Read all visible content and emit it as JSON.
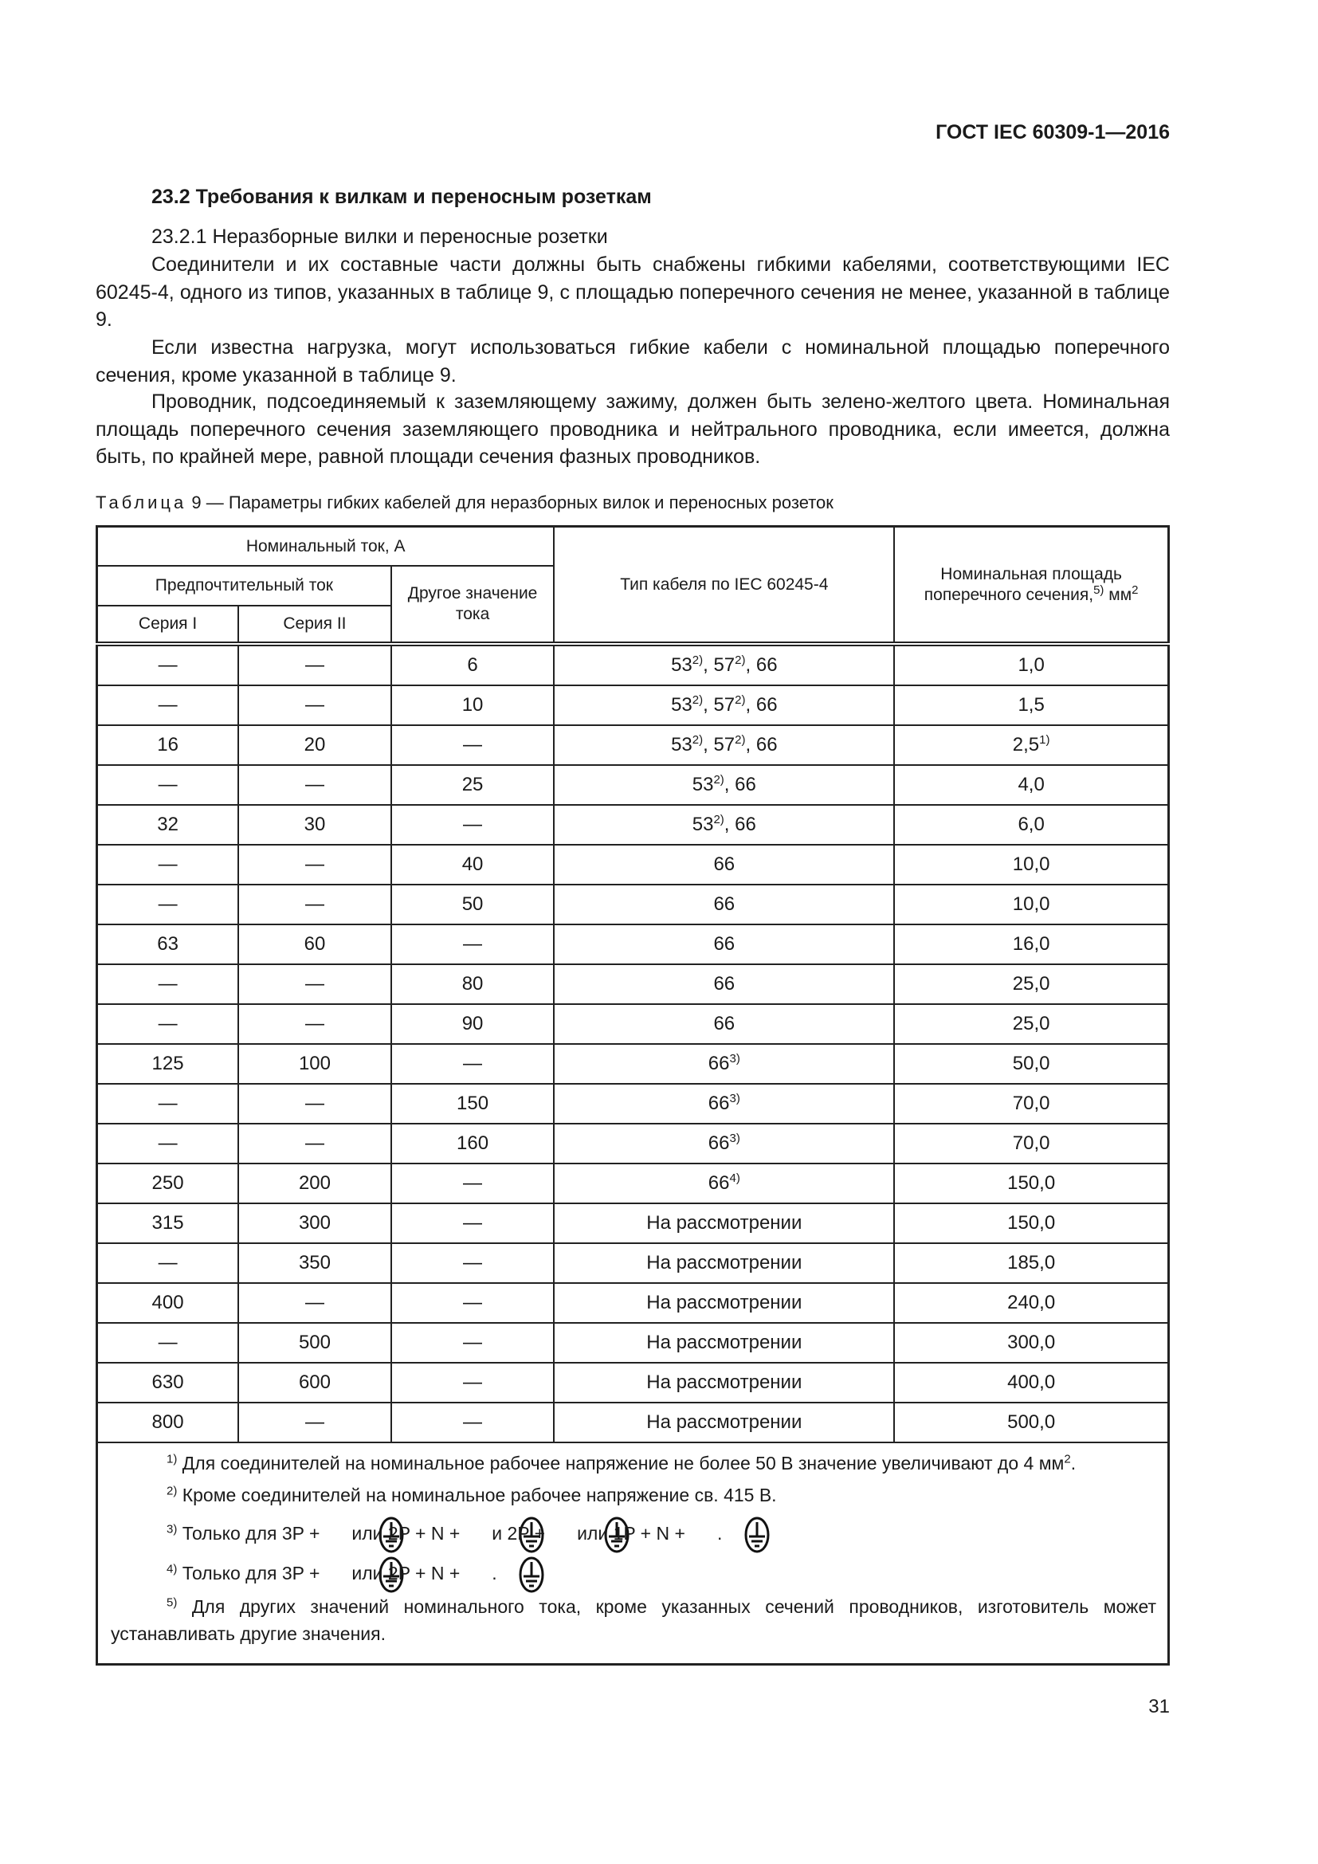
{
  "header": {
    "doc_id": "ГОСТ IEC 60309-1—2016"
  },
  "section": {
    "title": "23.2 Требования к вилкам и переносным розеткам",
    "paragraphs": [
      "23.2.1 Неразборные вилки и переносные розетки",
      "Соединители и их составные части должны быть снабжены гибкими кабелями, соответствующими IEC 60245-4, одного из типов, указанных в таблице 9, с площадью поперечного сечения не менее, указанной в таблице 9.",
      "Если известна нагрузка, могут использоваться гибкие кабели с номинальной площадью поперечного сечения, кроме указанной в таблице 9.",
      "Проводник, подсоединяемый к заземляющему зажиму, должен быть зелено-желтого цвета. Номинальная площадь поперечного сечения заземляющего проводника и нейтрального проводника, если имеется, должна быть, по крайней мере, равной площади сечения фазных проводников."
    ]
  },
  "table": {
    "caption_label": "Таблица",
    "caption_text": "9 — Параметры гибких кабелей для неразборных вилок и переносных розеток",
    "headers": {
      "rated_current": "Номинальный ток, А",
      "preferred": "Предпочтительный ток",
      "other": "Другое значение тока",
      "series1": "Серия I",
      "series2": "Серия II",
      "cable_type": "Тип кабеля по IEC 60245-4",
      "area": "Номинальная площадь поперечного сечения,",
      "area_sup": "5)",
      "area_unit": "мм",
      "area_unit_sup": "2"
    },
    "rows": [
      {
        "s1": "—",
        "s2": "—",
        "other": "6",
        "cable": [
          [
            "53",
            "2)"
          ],
          [
            "57",
            "2)"
          ],
          [
            "66",
            ""
          ]
        ],
        "area": [
          "1,0",
          ""
        ]
      },
      {
        "s1": "—",
        "s2": "—",
        "other": "10",
        "cable": [
          [
            "53",
            "2)"
          ],
          [
            "57",
            "2)"
          ],
          [
            "66",
            ""
          ]
        ],
        "area": [
          "1,5",
          ""
        ]
      },
      {
        "s1": "16",
        "s2": "20",
        "other": "—",
        "cable": [
          [
            "53",
            "2)"
          ],
          [
            "57",
            "2)"
          ],
          [
            "66",
            ""
          ]
        ],
        "area": [
          "2,5",
          "1)"
        ]
      },
      {
        "s1": "—",
        "s2": "—",
        "other": "25",
        "cable": [
          [
            "53",
            "2)"
          ],
          [
            "66",
            ""
          ]
        ],
        "area": [
          "4,0",
          ""
        ]
      },
      {
        "s1": "32",
        "s2": "30",
        "other": "—",
        "cable": [
          [
            "53",
            "2)"
          ],
          [
            "66",
            ""
          ]
        ],
        "area": [
          "6,0",
          ""
        ]
      },
      {
        "s1": "—",
        "s2": "—",
        "other": "40",
        "cable": [
          [
            "66",
            ""
          ]
        ],
        "area": [
          "10,0",
          ""
        ]
      },
      {
        "s1": "—",
        "s2": "—",
        "other": "50",
        "cable": [
          [
            "66",
            ""
          ]
        ],
        "area": [
          "10,0",
          ""
        ]
      },
      {
        "s1": "63",
        "s2": "60",
        "other": "—",
        "cable": [
          [
            "66",
            ""
          ]
        ],
        "area": [
          "16,0",
          ""
        ]
      },
      {
        "s1": "—",
        "s2": "—",
        "other": "80",
        "cable": [
          [
            "66",
            ""
          ]
        ],
        "area": [
          "25,0",
          ""
        ]
      },
      {
        "s1": "—",
        "s2": "—",
        "other": "90",
        "cable": [
          [
            "66",
            ""
          ]
        ],
        "area": [
          "25,0",
          ""
        ]
      },
      {
        "s1": "125",
        "s2": "100",
        "other": "—",
        "cable": [
          [
            "66",
            "3)"
          ]
        ],
        "area": [
          "50,0",
          ""
        ]
      },
      {
        "s1": "—",
        "s2": "—",
        "other": "150",
        "cable": [
          [
            "66",
            "3)"
          ]
        ],
        "area": [
          "70,0",
          ""
        ]
      },
      {
        "s1": "—",
        "s2": "—",
        "other": "160",
        "cable": [
          [
            "66",
            "3)"
          ]
        ],
        "area": [
          "70,0",
          ""
        ]
      },
      {
        "s1": "250",
        "s2": "200",
        "other": "—",
        "cable": [
          [
            "66",
            "4)"
          ]
        ],
        "area": [
          "150,0",
          ""
        ]
      },
      {
        "s1": "315",
        "s2": "300",
        "other": "—",
        "cable": [
          [
            "На рассмотрении",
            ""
          ]
        ],
        "area": [
          "150,0",
          ""
        ]
      },
      {
        "s1": "—",
        "s2": "350",
        "other": "—",
        "cable": [
          [
            "На рассмотрении",
            ""
          ]
        ],
        "area": [
          "185,0",
          ""
        ]
      },
      {
        "s1": "400",
        "s2": "—",
        "other": "—",
        "cable": [
          [
            "На рассмотрении",
            ""
          ]
        ],
        "area": [
          "240,0",
          ""
        ]
      },
      {
        "s1": "—",
        "s2": "500",
        "other": "—",
        "cable": [
          [
            "На рассмотрении",
            ""
          ]
        ],
        "area": [
          "300,0",
          ""
        ]
      },
      {
        "s1": "630",
        "s2": "600",
        "other": "—",
        "cable": [
          [
            "На рассмотрении",
            ""
          ]
        ],
        "area": [
          "400,0",
          ""
        ]
      },
      {
        "s1": "800",
        "s2": "—",
        "other": "—",
        "cable": [
          [
            "На рассмотрении",
            ""
          ]
        ],
        "area": [
          "500,0",
          ""
        ]
      }
    ],
    "footnotes": [
      {
        "mark": "1)",
        "parts": [
          "Для соединителей на номинальное рабочее напряжение не более 50 В значение увеличивают до 4 мм",
          {
            "sup": "2"
          },
          "."
        ]
      },
      {
        "mark": "2)",
        "parts": [
          "Кроме соединителей на номинальное рабочее напряжение св. 415 В."
        ]
      },
      {
        "mark": "3)",
        "parts": [
          "Только для 3P +",
          {
            "icon": "protective-earth-icon"
          },
          "или 2P + N +",
          {
            "icon": "protective-earth-icon"
          },
          "и 2P +",
          {
            "icon": "protective-earth-icon"
          },
          "или 1P + N +",
          {
            "icon": "protective-earth-icon"
          },
          "."
        ]
      },
      {
        "mark": "4)",
        "parts": [
          "Только для 3P +",
          {
            "icon": "protective-earth-icon"
          },
          "или 2P + N +",
          {
            "icon": "protective-earth-icon"
          },
          "."
        ]
      },
      {
        "mark": "5)",
        "parts": [
          "Для других значений номинального тока, кроме указанных сечений проводников, изготовитель может устанавливать другие значения."
        ]
      }
    ]
  },
  "page_number": "31"
}
